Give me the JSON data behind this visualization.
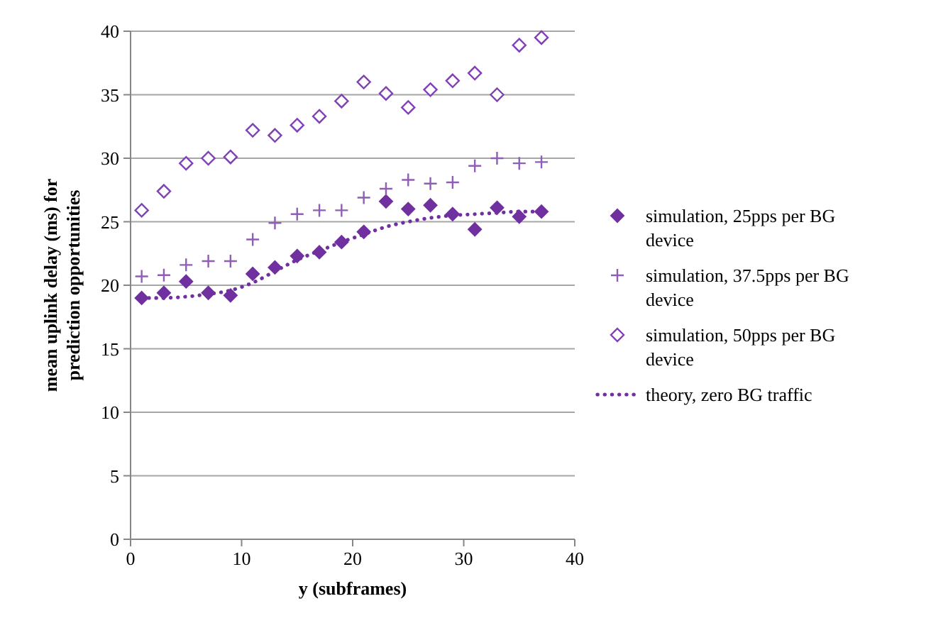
{
  "chart_data": {
    "type": "scatter",
    "xlabel": "y (subframes)",
    "ylabel": "mean uplink delay (ms) for prediction opportunities",
    "x": [
      1,
      3,
      5,
      7,
      9,
      11,
      13,
      15,
      17,
      19,
      21,
      23,
      25,
      27,
      29,
      31,
      33,
      35,
      37
    ],
    "xlim": [
      0,
      40
    ],
    "xticks": [
      0,
      10,
      20,
      30,
      40
    ],
    "ylim": [
      0,
      40
    ],
    "yticks": [
      0,
      5,
      10,
      15,
      20,
      25,
      30,
      35,
      40
    ],
    "grid": "y",
    "legend": "right",
    "series": [
      {
        "name": "simulation, 25pps per BG device",
        "color": "#7030a0",
        "marker": "diamond",
        "values": [
          19.0,
          19.4,
          20.3,
          19.4,
          19.2,
          20.9,
          21.4,
          22.3,
          22.6,
          23.4,
          24.2,
          26.6,
          26.0,
          26.3,
          25.6,
          24.4,
          26.1,
          25.4,
          25.8
        ]
      },
      {
        "name": "simulation, 37.5pps per BG device",
        "color": "#8e5fb5",
        "marker": "cross",
        "values": [
          20.7,
          20.8,
          21.6,
          21.9,
          21.9,
          23.6,
          24.9,
          25.6,
          25.9,
          25.9,
          26.9,
          27.6,
          28.3,
          28.0,
          28.1,
          29.4,
          30.0,
          29.6,
          29.7
        ]
      },
      {
        "name": "simulation, 50pps per BG device",
        "color": "#8040b8",
        "marker": "diamond_open",
        "values": [
          25.9,
          27.4,
          29.6,
          30.0,
          30.1,
          32.2,
          31.8,
          32.6,
          33.3,
          34.5,
          36.0,
          35.1,
          34.0,
          35.4,
          36.1,
          36.7,
          35.0,
          38.9,
          39.5
        ]
      },
      {
        "name": "theory, zero BG traffic",
        "type": "line",
        "color": "#7030a0",
        "marker": "none",
        "line_style": "dotted",
        "x": [
          1,
          3,
          5,
          7,
          9,
          11,
          13,
          15,
          17,
          19,
          21,
          23,
          25,
          27,
          29,
          31,
          33,
          35,
          37
        ],
        "values": [
          19.0,
          19.0,
          19.1,
          19.3,
          19.6,
          20.2,
          21.1,
          22.0,
          22.7,
          23.4,
          24.0,
          24.6,
          25.0,
          25.3,
          25.5,
          25.6,
          25.7,
          25.8,
          25.8
        ]
      }
    ]
  }
}
